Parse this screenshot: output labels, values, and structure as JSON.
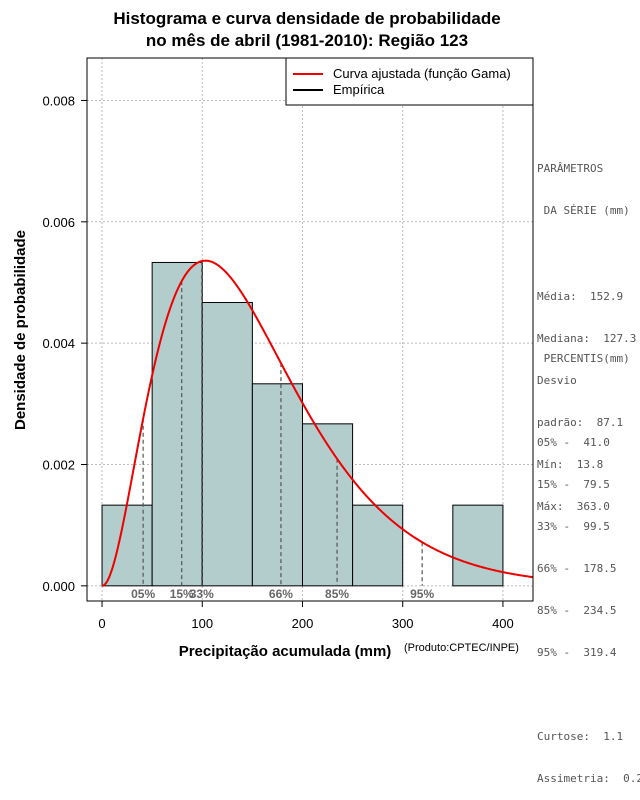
{
  "title_line1": "Histograma e curva densidade de probabilidade",
  "title_line2": "no mês de abril (1981-2010): Região 123",
  "credit": "(Produto:CPTEC/INPE)",
  "colors": {
    "bar_fill": "#b3cccc",
    "curve": "#ee0000",
    "grid": "#bbbbbb",
    "dashed": "#555555"
  },
  "legend": {
    "fitted": "Curva ajustada (função Gama)",
    "empirical": "Empírica"
  },
  "parameters": {
    "header1": "PARÂMETROS",
    "header2": " DA SÉRIE (mm)",
    "media": "Média:  152.9",
    "mediana": "Mediana:  127.3",
    "desvio": "Desvio",
    "padrao": "padrão:  87.1",
    "min": "Mín:  13.8",
    "max": "Máx:  363.0"
  },
  "percentis": {
    "header": " PERCENTIS(mm)",
    "p05": "05% -  41.0",
    "p15": "15% -  79.5",
    "p33": "33% -  99.5",
    "p66": "66% -  178.5",
    "p85": "85% -  234.5",
    "p95": "95% -  319.4",
    "curtose": "Curtose:  1.1",
    "assimetria": "Assimetria:  0.2"
  },
  "chart_data": {
    "type": "bar",
    "title": "Histograma e curva densidade de probabilidade no mês de abril (1981-2010): Região 123",
    "xlabel": "Precipitação acumulada (mm)",
    "ylabel": "Densidade de probabilidade",
    "xlim": [
      -15,
      430
    ],
    "ylim": [
      -0.00025,
      0.0087
    ],
    "x_ticks": [
      0,
      100,
      200,
      300,
      400
    ],
    "x_tick_labels": [
      "0",
      "100",
      "200",
      "300",
      "400"
    ],
    "y_ticks": [
      0,
      0.002,
      0.004,
      0.006,
      0.008
    ],
    "y_tick_labels": [
      "0.000",
      "0.002",
      "0.004",
      "0.006",
      "0.008"
    ],
    "grid": true,
    "legend_position": "top-right",
    "histogram": {
      "bin_edges": [
        0,
        50,
        100,
        150,
        200,
        250,
        300,
        350,
        400
      ],
      "density": [
        0.00133,
        0.00533,
        0.00467,
        0.00333,
        0.00267,
        0.00133,
        0,
        0.00133
      ]
    },
    "gamma_fit": {
      "shape": 3.08,
      "scale": 49.6
    },
    "percentiles": [
      {
        "label": "05%",
        "value": 41.0
      },
      {
        "label": "15%",
        "value": 79.5
      },
      {
        "label": "33%",
        "value": 99.5
      },
      {
        "label": "66%",
        "value": 178.5
      },
      {
        "label": "85%",
        "value": 234.5
      },
      {
        "label": "95%",
        "value": 319.4
      }
    ]
  }
}
